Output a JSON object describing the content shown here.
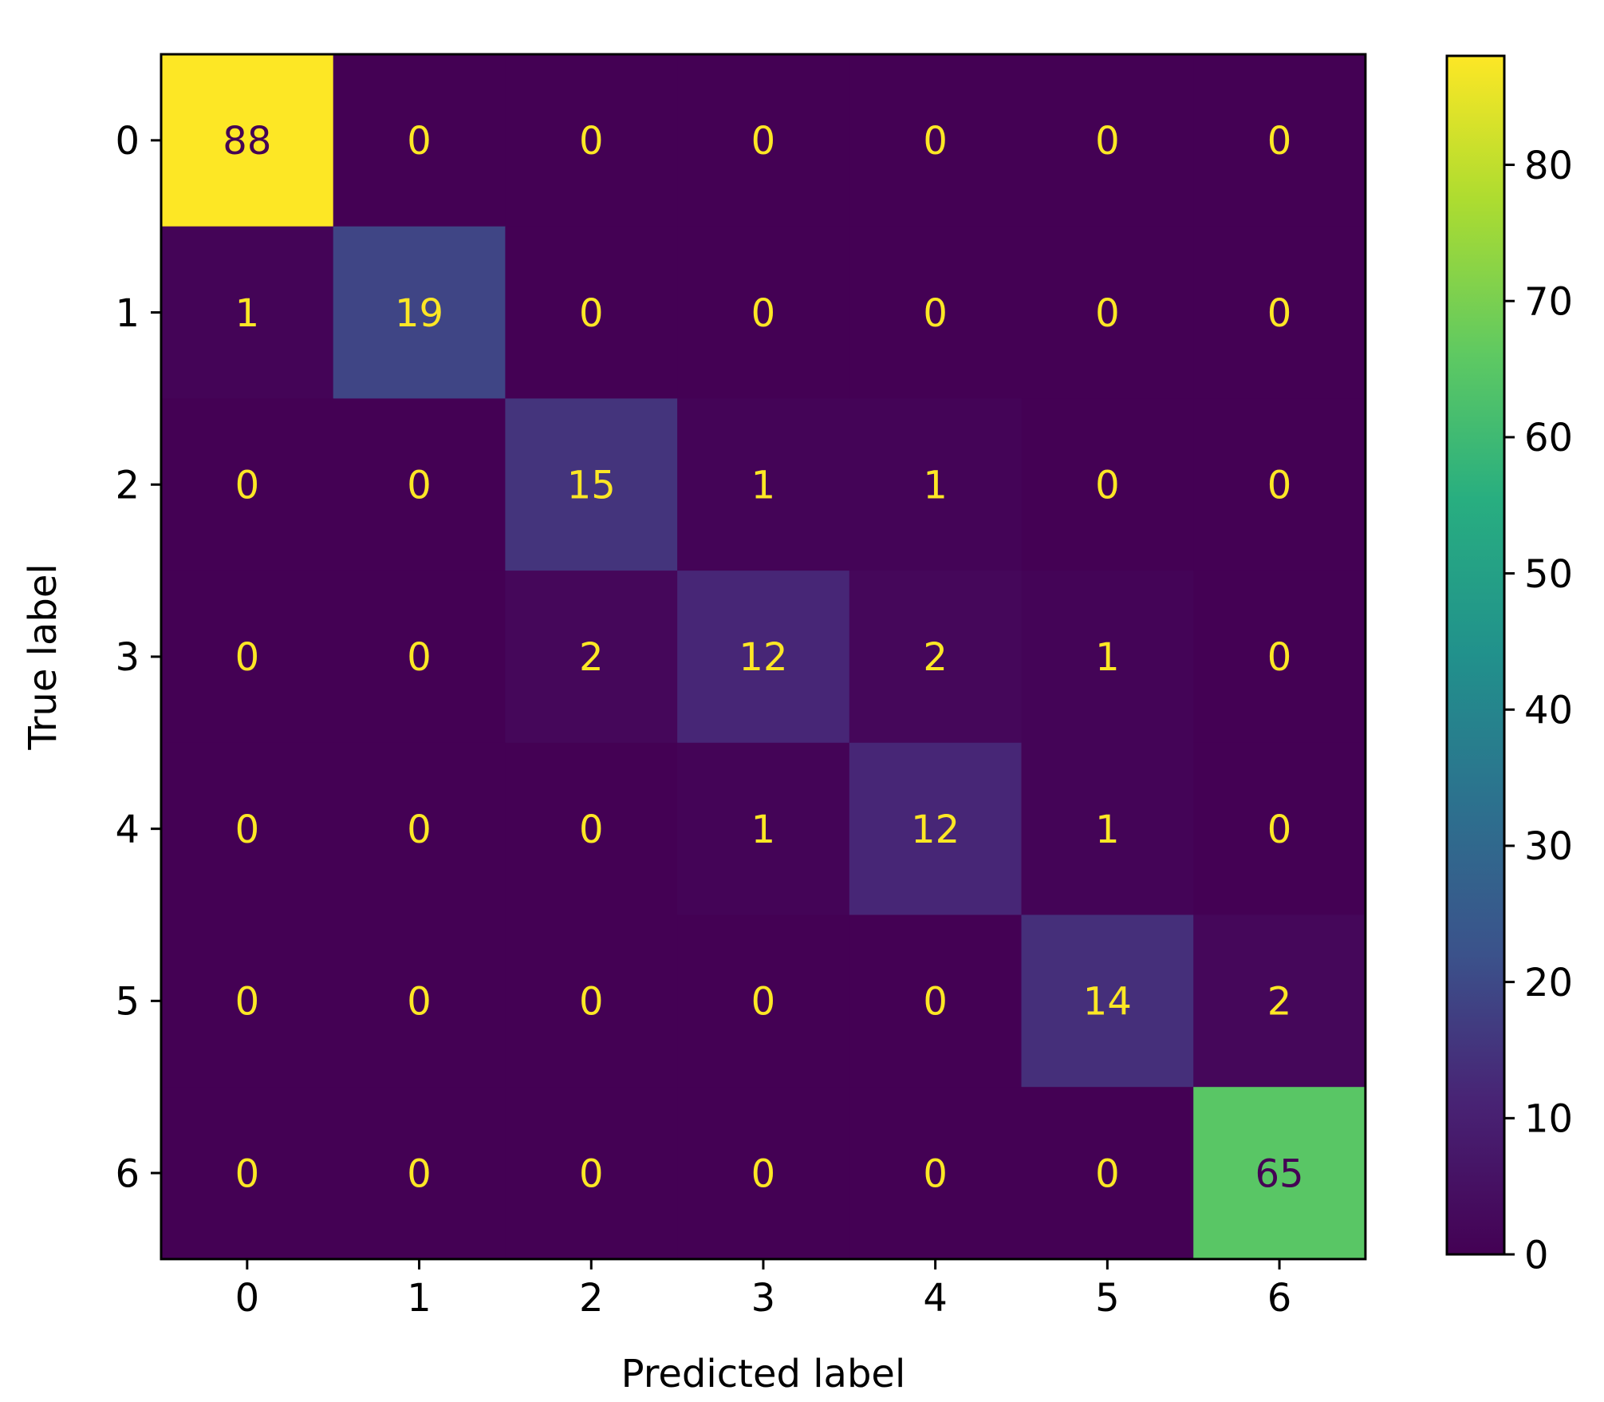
{
  "chart_data": {
    "type": "heatmap",
    "title": "",
    "xlabel": "Predicted label",
    "ylabel": "True label",
    "x_categories": [
      "0",
      "1",
      "2",
      "3",
      "4",
      "5",
      "6"
    ],
    "y_categories": [
      "0",
      "1",
      "2",
      "3",
      "4",
      "5",
      "6"
    ],
    "matrix": [
      [
        88,
        0,
        0,
        0,
        0,
        0,
        0
      ],
      [
        1,
        19,
        0,
        0,
        0,
        0,
        0
      ],
      [
        0,
        0,
        15,
        1,
        1,
        0,
        0
      ],
      [
        0,
        0,
        2,
        12,
        2,
        1,
        0
      ],
      [
        0,
        0,
        0,
        1,
        12,
        1,
        0
      ],
      [
        0,
        0,
        0,
        0,
        0,
        14,
        2
      ],
      [
        0,
        0,
        0,
        0,
        0,
        0,
        65
      ]
    ],
    "colormap": "viridis",
    "colorbar": {
      "vmin": 0,
      "vmax": 88,
      "ticks": [
        0,
        10,
        20,
        30,
        40,
        50,
        60,
        70,
        80
      ]
    },
    "text_color_light": "#fde725",
    "text_color_dark": "#440154",
    "grid": false,
    "legend": "colorbar-right"
  }
}
